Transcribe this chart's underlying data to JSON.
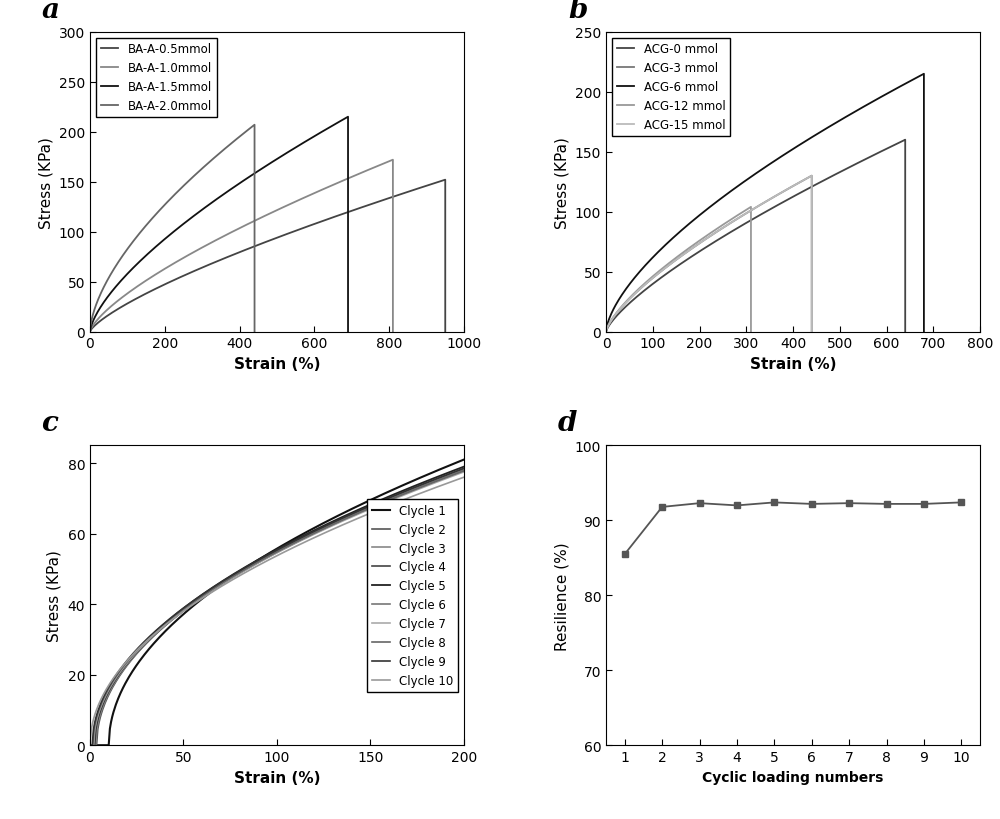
{
  "panel_a": {
    "title": "a",
    "xlabel": "Strain (%)",
    "ylabel": "Stress (KPa)",
    "xlim": [
      0,
      1000
    ],
    "ylim": [
      0,
      300
    ],
    "xticks": [
      0,
      200,
      400,
      600,
      800,
      1000
    ],
    "yticks": [
      0,
      50,
      100,
      150,
      200,
      250,
      300
    ],
    "series": [
      {
        "label": "BA-A-0.5mmol",
        "color": "#444444",
        "max_strain": 950,
        "max_stress": 152,
        "lw": 1.3,
        "exp": 0.75
      },
      {
        "label": "BA-A-1.0mmol",
        "color": "#888888",
        "max_strain": 810,
        "max_stress": 172,
        "lw": 1.3,
        "exp": 0.72
      },
      {
        "label": "BA-A-1.5mmol",
        "color": "#111111",
        "max_strain": 690,
        "max_stress": 215,
        "lw": 1.3,
        "exp": 0.68
      },
      {
        "label": "BA-A-2.0mmol",
        "color": "#666666",
        "max_strain": 440,
        "max_stress": 207,
        "lw": 1.3,
        "exp": 0.62
      }
    ]
  },
  "panel_b": {
    "title": "b",
    "xlabel": "Strain (%)",
    "ylabel": "Stress (KPa)",
    "xlim": [
      0,
      800
    ],
    "ylim": [
      0,
      250
    ],
    "xticks": [
      0,
      100,
      200,
      300,
      400,
      500,
      600,
      700,
      800
    ],
    "yticks": [
      0,
      50,
      100,
      150,
      200,
      250
    ],
    "series": [
      {
        "label": "ACG-0 mmol",
        "color": "#444444",
        "max_strain": 640,
        "max_stress": 160,
        "lw": 1.3,
        "exp": 0.75
      },
      {
        "label": "ACG-3 mmol",
        "color": "#777777",
        "max_strain": 440,
        "max_stress": 130,
        "lw": 1.3,
        "exp": 0.72
      },
      {
        "label": "ACG-6 mmol",
        "color": "#111111",
        "max_strain": 680,
        "max_stress": 215,
        "lw": 1.3,
        "exp": 0.65
      },
      {
        "label": "ACG-12 mmol",
        "color": "#999999",
        "max_strain": 310,
        "max_stress": 104,
        "lw": 1.3,
        "exp": 0.72
      },
      {
        "label": "ACG-15 mmol",
        "color": "#bbbbbb",
        "max_strain": 440,
        "max_stress": 130,
        "lw": 1.3,
        "exp": 0.72
      }
    ]
  },
  "panel_c": {
    "title": "c",
    "xlabel": "Strain (%)",
    "ylabel": "Stress (KPa)",
    "xlim": [
      0,
      200
    ],
    "ylim": [
      0,
      85
    ],
    "xticks": [
      0,
      50,
      100,
      150,
      200
    ],
    "yticks": [
      0,
      20,
      40,
      60,
      80
    ],
    "cycles": [
      {
        "label": "Clycle 1",
        "color": "#111111",
        "end_stress": 81,
        "x_shift": 10.0,
        "lw": 1.5
      },
      {
        "label": "Clycle 2",
        "color": "#555555",
        "end_stress": 78.5,
        "x_shift": 3.5,
        "lw": 1.2
      },
      {
        "label": "Clycle 3",
        "color": "#888888",
        "end_stress": 78.0,
        "x_shift": 3.0,
        "lw": 1.2
      },
      {
        "label": "Clycle 4",
        "color": "#444444",
        "end_stress": 77.8,
        "x_shift": 2.5,
        "lw": 1.2
      },
      {
        "label": "Clycle 5",
        "color": "#222222",
        "end_stress": 79.0,
        "x_shift": 2.2,
        "lw": 1.3
      },
      {
        "label": "Clycle 6",
        "color": "#777777",
        "end_stress": 78.0,
        "x_shift": 2.0,
        "lw": 1.2
      },
      {
        "label": "Clycle 7",
        "color": "#aaaaaa",
        "end_stress": 77.5,
        "x_shift": 1.8,
        "lw": 1.2
      },
      {
        "label": "Clycle 8",
        "color": "#666666",
        "end_stress": 77.8,
        "x_shift": 1.5,
        "lw": 1.2
      },
      {
        "label": "Clycle 9",
        "color": "#333333",
        "end_stress": 78.5,
        "x_shift": 1.2,
        "lw": 1.2
      },
      {
        "label": "Clycle 10",
        "color": "#999999",
        "end_stress": 76.0,
        "x_shift": 0.0,
        "lw": 1.2
      }
    ]
  },
  "panel_d": {
    "title": "d",
    "xlabel": "Cyclic loading numbers",
    "ylabel": "Resilience (%)",
    "xlim": [
      0.5,
      10.5
    ],
    "ylim": [
      60,
      100
    ],
    "xticks": [
      1,
      2,
      3,
      4,
      5,
      6,
      7,
      8,
      9,
      10
    ],
    "yticks": [
      60,
      70,
      80,
      90,
      100
    ],
    "x": [
      1,
      2,
      3,
      4,
      5,
      6,
      7,
      8,
      9,
      10
    ],
    "y": [
      85.5,
      91.8,
      92.3,
      92.0,
      92.4,
      92.2,
      92.3,
      92.2,
      92.2,
      92.4
    ],
    "color": "#555555",
    "marker": "s",
    "markersize": 5,
    "lw": 1.3
  }
}
